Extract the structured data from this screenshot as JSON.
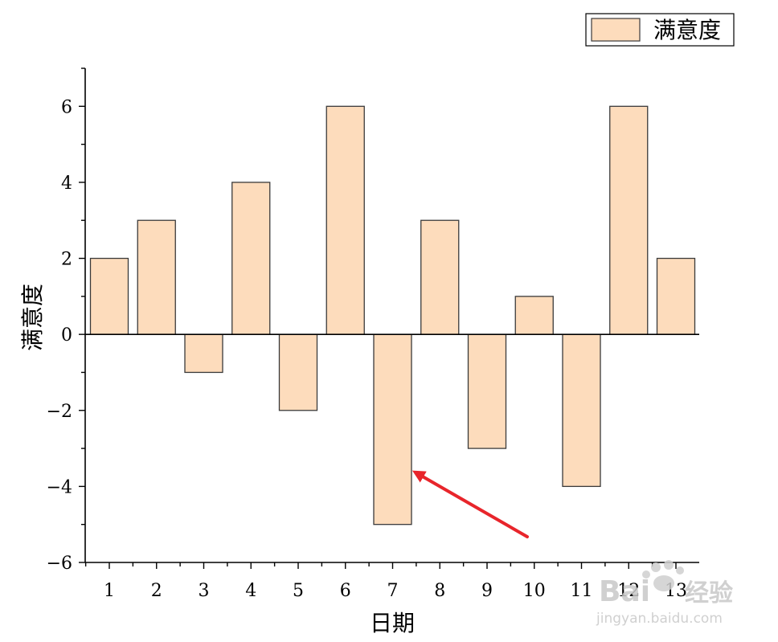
{
  "chart_data": {
    "type": "bar",
    "categories": [
      "1",
      "2",
      "3",
      "4",
      "5",
      "6",
      "7",
      "8",
      "9",
      "10",
      "11",
      "12",
      "13"
    ],
    "series": [
      {
        "name": "满意度",
        "values": [
          2,
          3,
          -1,
          4,
          -2,
          6,
          -5,
          3,
          -3,
          1,
          -4,
          6,
          2
        ]
      }
    ],
    "xlabel": "日期",
    "ylabel": "满意度",
    "ylim": [
      -6,
      7
    ],
    "yticks": [
      -6,
      -4,
      -2,
      0,
      2,
      4,
      6
    ],
    "ytick_labels": [
      "−6",
      "−4",
      "−2",
      "0",
      "2",
      "4",
      "6"
    ],
    "grid": false,
    "legend_position": "top-right",
    "colors": {
      "bar_fill": "#fddcbc",
      "bar_stroke": "#3a3a3a",
      "annotation_arrow": "#e8252b"
    },
    "annotation": {
      "type": "arrow",
      "target_category": "7"
    }
  },
  "watermark": {
    "brand": "Bai",
    "brand_suffix": "经验",
    "url": "jingyan.baidu.com"
  }
}
